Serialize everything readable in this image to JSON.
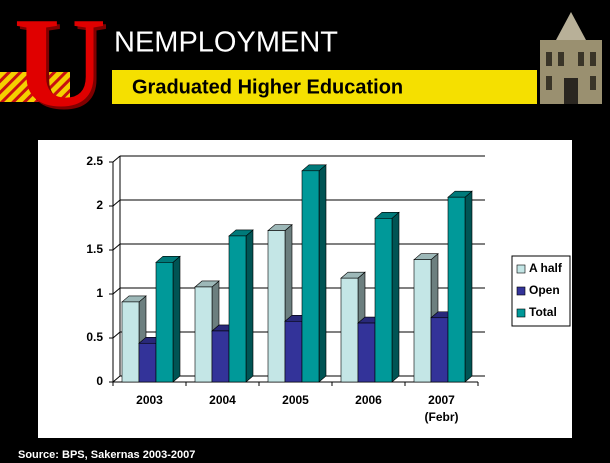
{
  "header": {
    "letter": "U",
    "title": "NEMPLOYMENT",
    "subtitle": "Graduated Higher Education"
  },
  "chart_data": {
    "type": "bar",
    "categories": [
      "2003",
      "2004",
      "2005",
      "2006",
      "2007 (Febr)"
    ],
    "series": [
      {
        "name": "A half",
        "color": "#c4e6e6",
        "values": [
          0.91,
          1.08,
          1.72,
          1.18,
          1.39
        ]
      },
      {
        "name": "Open",
        "color": "#333399",
        "values": [
          0.44,
          0.58,
          0.69,
          0.67,
          0.73
        ]
      },
      {
        "name": "Total",
        "color": "#009999",
        "values": [
          1.36,
          1.66,
          2.4,
          1.86,
          2.1
        ]
      }
    ],
    "ylim": [
      0,
      2.5
    ],
    "yticks": [
      0,
      0.5,
      1,
      1.5,
      2,
      2.5
    ],
    "grid": true,
    "legend": "right"
  },
  "source": "Source: BPS, Sakernas 2003-2007"
}
